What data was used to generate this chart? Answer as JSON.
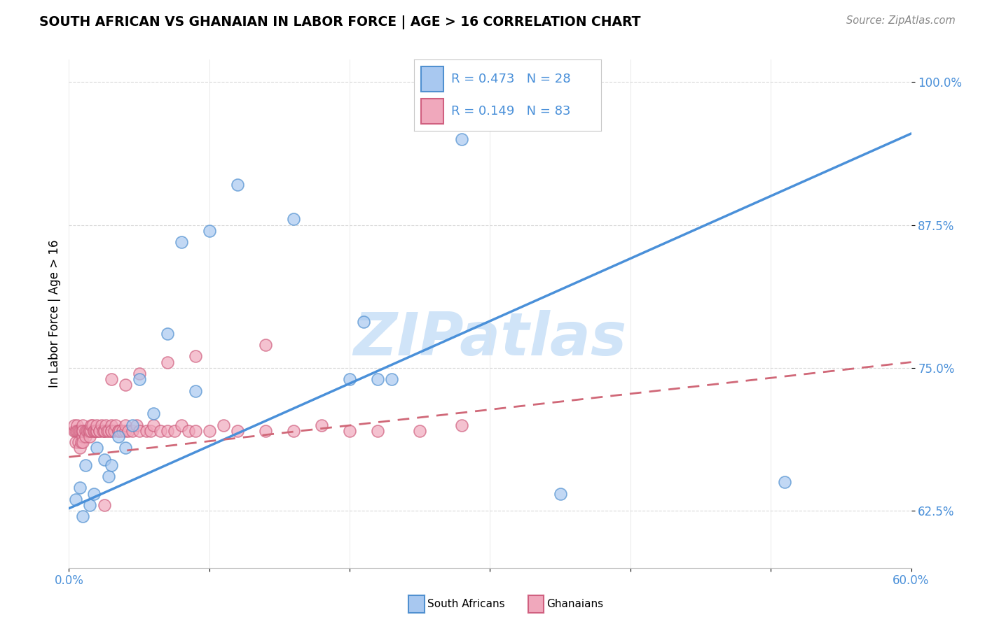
{
  "title": "SOUTH AFRICAN VS GHANAIAN IN LABOR FORCE | AGE > 16 CORRELATION CHART",
  "source_text": "Source: ZipAtlas.com",
  "ylabel": "In Labor Force | Age > 16",
  "xlim": [
    0.0,
    0.6
  ],
  "ylim": [
    0.575,
    1.02
  ],
  "xtick_positions": [
    0.0,
    0.1,
    0.2,
    0.3,
    0.4,
    0.5,
    0.6
  ],
  "xticklabels": [
    "0.0%",
    "",
    "",
    "",
    "",
    "",
    "60.0%"
  ],
  "ytick_positions": [
    0.625,
    0.75,
    0.875,
    1.0
  ],
  "yticklabels": [
    "62.5%",
    "75.0%",
    "87.5%",
    "100.0%"
  ],
  "legend_R_blue": "0.473",
  "legend_N_blue": "28",
  "legend_R_pink": "0.149",
  "legend_N_pink": "83",
  "color_blue_fill": "#a8c8f0",
  "color_pink_fill": "#f0a8bc",
  "color_blue_edge": "#5090d0",
  "color_pink_edge": "#d06080",
  "color_blue_line": "#4a90d9",
  "color_pink_line": "#d06878",
  "watermark_text": "ZIPatlas",
  "watermark_color": "#d0e4f8",
  "sa_x": [
    0.005,
    0.008,
    0.01,
    0.012,
    0.015,
    0.018,
    0.02,
    0.025,
    0.028,
    0.03,
    0.035,
    0.04,
    0.045,
    0.05,
    0.06,
    0.07,
    0.08,
    0.09,
    0.1,
    0.12,
    0.16,
    0.2,
    0.22,
    0.28,
    0.35,
    0.51,
    0.21,
    0.23
  ],
  "sa_y": [
    0.635,
    0.645,
    0.62,
    0.665,
    0.63,
    0.64,
    0.68,
    0.67,
    0.655,
    0.665,
    0.69,
    0.68,
    0.7,
    0.74,
    0.71,
    0.78,
    0.86,
    0.73,
    0.87,
    0.91,
    0.88,
    0.74,
    0.74,
    0.95,
    0.64,
    0.65,
    0.79,
    0.74
  ],
  "gh_x": [
    0.004,
    0.004,
    0.005,
    0.005,
    0.006,
    0.006,
    0.007,
    0.007,
    0.008,
    0.008,
    0.009,
    0.009,
    0.01,
    0.01,
    0.01,
    0.01,
    0.01,
    0.012,
    0.012,
    0.013,
    0.014,
    0.015,
    0.015,
    0.015,
    0.016,
    0.016,
    0.017,
    0.018,
    0.018,
    0.019,
    0.02,
    0.02,
    0.02,
    0.022,
    0.022,
    0.023,
    0.024,
    0.025,
    0.025,
    0.026,
    0.027,
    0.028,
    0.03,
    0.03,
    0.03,
    0.032,
    0.033,
    0.035,
    0.035,
    0.036,
    0.038,
    0.04,
    0.04,
    0.042,
    0.045,
    0.048,
    0.05,
    0.055,
    0.058,
    0.06,
    0.065,
    0.07,
    0.075,
    0.08,
    0.085,
    0.09,
    0.1,
    0.11,
    0.12,
    0.14,
    0.16,
    0.18,
    0.2,
    0.22,
    0.25,
    0.28,
    0.14,
    0.09,
    0.07,
    0.05,
    0.03,
    0.04,
    0.025
  ],
  "gh_y": [
    0.695,
    0.7,
    0.685,
    0.695,
    0.7,
    0.695,
    0.695,
    0.685,
    0.695,
    0.68,
    0.695,
    0.685,
    0.69,
    0.685,
    0.695,
    0.7,
    0.695,
    0.695,
    0.69,
    0.695,
    0.695,
    0.695,
    0.69,
    0.695,
    0.695,
    0.7,
    0.7,
    0.695,
    0.695,
    0.695,
    0.695,
    0.695,
    0.7,
    0.695,
    0.695,
    0.7,
    0.695,
    0.695,
    0.695,
    0.7,
    0.695,
    0.695,
    0.695,
    0.7,
    0.695,
    0.695,
    0.7,
    0.695,
    0.695,
    0.695,
    0.695,
    0.695,
    0.7,
    0.695,
    0.695,
    0.7,
    0.695,
    0.695,
    0.695,
    0.7,
    0.695,
    0.695,
    0.695,
    0.7,
    0.695,
    0.695,
    0.695,
    0.7,
    0.695,
    0.695,
    0.695,
    0.7,
    0.695,
    0.695,
    0.695,
    0.7,
    0.77,
    0.76,
    0.755,
    0.745,
    0.74,
    0.735,
    0.63
  ],
  "sa_line_x": [
    0.0,
    0.6
  ],
  "sa_line_y": [
    0.627,
    0.955
  ],
  "gh_line_x": [
    0.0,
    0.6
  ],
  "gh_line_y": [
    0.672,
    0.755
  ]
}
